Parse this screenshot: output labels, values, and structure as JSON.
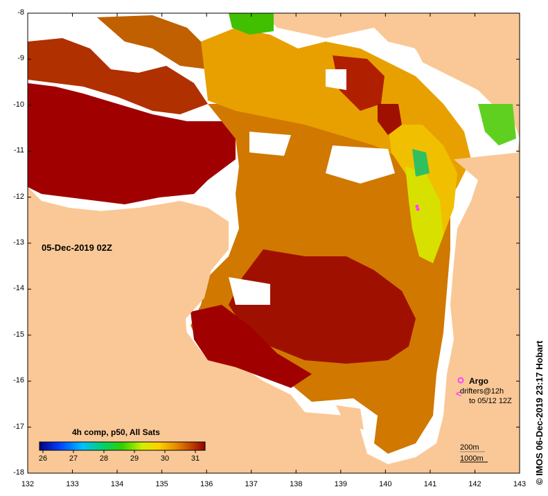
{
  "map": {
    "lon_ticks": [
      "132",
      "133",
      "134",
      "135",
      "136",
      "137",
      "138",
      "139",
      "140",
      "141",
      "142",
      "143"
    ],
    "lat_ticks": [
      "-8",
      "-9",
      "-10",
      "-11",
      "-12",
      "-13",
      "-14",
      "-15",
      "-16",
      "-17",
      "-18"
    ],
    "date_label": "05-Dec-2019 02Z",
    "colorbar_title": "4h comp, p50, All Sats",
    "colorbar_ticks": [
      "26",
      "27",
      "28",
      "29",
      "30",
      "31"
    ],
    "credit": "© IMOS 06-Dec-2019 23:17 Hobart",
    "legend": {
      "argo": "Argo",
      "drifters_line1": "drifters@12h",
      "drifters_line2": "to 05/12 12Z",
      "drifters_glyph": "<"
    },
    "scale_labels": [
      "200m",
      "1000m"
    ],
    "colors": {
      "land": "#FAC896",
      "no_data": "#FFFFFF",
      "sst_hot": "#A00000",
      "sst_warm": "#D07800",
      "argo": "#FF40FF"
    }
  }
}
